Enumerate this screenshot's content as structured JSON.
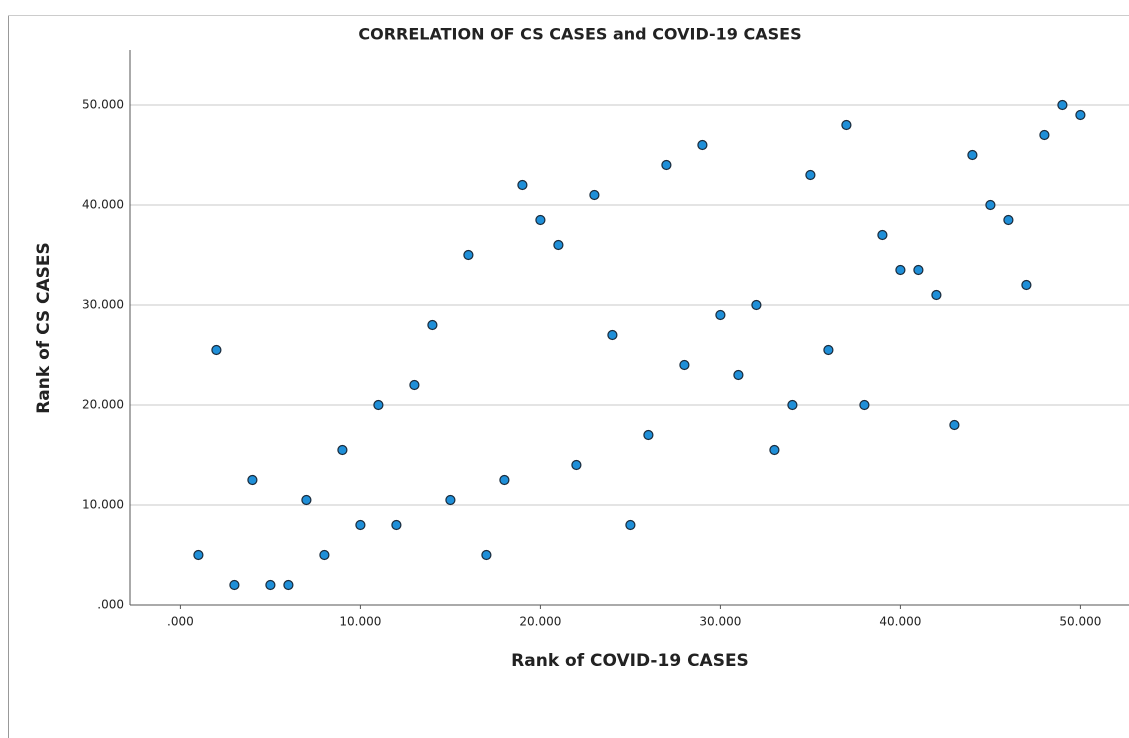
{
  "chart_data": {
    "type": "scatter",
    "title": "CORRELATION OF CS CASES and COVID-19 CASES",
    "x_label": "Rank of COVID-19 CASES",
    "y_label": "Rank of CS CASES",
    "color": "#1f8fd8",
    "x": [
      1,
      2,
      3,
      4,
      5,
      6,
      7,
      8,
      9,
      10,
      11,
      12,
      13,
      14,
      15,
      16,
      17,
      18,
      19,
      20,
      21,
      22,
      23,
      24,
      25,
      26,
      27,
      28,
      29,
      30,
      31,
      32,
      33,
      34,
      35,
      36,
      37,
      38,
      39,
      40,
      41,
      42,
      43,
      44,
      45,
      46,
      47,
      48,
      49,
      50
    ],
    "values": [
      5,
      25.5,
      2,
      12.5,
      2,
      2,
      10.5,
      5,
      15.5,
      8,
      20,
      8,
      22,
      28,
      10.5,
      35,
      5,
      12.5,
      42,
      38.5,
      36,
      14,
      41,
      27,
      8,
      17,
      44,
      24,
      46,
      29,
      23,
      30,
      15.5,
      20,
      43,
      25.5,
      48,
      20,
      37,
      33.5,
      33.5,
      31,
      18,
      45,
      40,
      38.5,
      32,
      47,
      50,
      49
    ],
    "xlim": [
      -2.8,
      52.7
    ],
    "ylim": [
      0,
      55.5
    ],
    "xticks": [
      {
        "value": 0,
        "label": ".000"
      },
      {
        "value": 10,
        "label": "10.000"
      },
      {
        "value": 20,
        "label": "20.000"
      },
      {
        "value": 30,
        "label": "30.000"
      },
      {
        "value": 40,
        "label": "40.000"
      },
      {
        "value": 50,
        "label": "50.000"
      }
    ],
    "yticks": [
      {
        "value": 0,
        "label": ".000"
      },
      {
        "value": 10,
        "label": "10.000"
      },
      {
        "value": 20,
        "label": "20.000"
      },
      {
        "value": 30,
        "label": "30.000"
      },
      {
        "value": 40,
        "label": "40.000"
      },
      {
        "value": 50,
        "label": "50.000"
      }
    ],
    "grid": true
  }
}
